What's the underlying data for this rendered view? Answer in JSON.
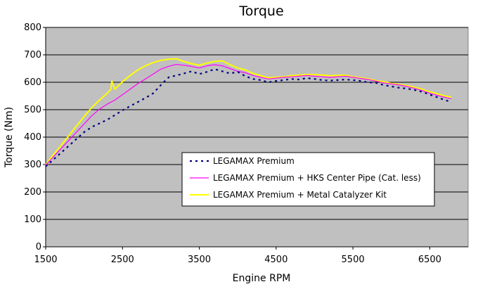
{
  "chart_data": {
    "type": "line",
    "title": "Torque",
    "xlabel": "Engine RPM",
    "ylabel": "Torque (Nm)",
    "xlim": [
      1500,
      7000
    ],
    "ylim": [
      0,
      800
    ],
    "xticks": [
      1500,
      2500,
      3500,
      4500,
      5500,
      6500
    ],
    "yticks": [
      0,
      100,
      200,
      300,
      400,
      500,
      600,
      700,
      800
    ],
    "grid": "horizontal",
    "legend_position": "center-right",
    "background_color": "#c0c0c0",
    "series": [
      {
        "name": "LEGAMAX Premium",
        "color": "#000080",
        "style": "dotted",
        "x": [
          1500,
          1600,
          1700,
          1800,
          1900,
          2000,
          2100,
          2200,
          2300,
          2400,
          2500,
          2600,
          2700,
          2800,
          2900,
          3000,
          3100,
          3200,
          3300,
          3400,
          3500,
          3600,
          3700,
          3800,
          3900,
          4000,
          4100,
          4200,
          4300,
          4400,
          4500,
          4600,
          4700,
          4800,
          4900,
          5000,
          5100,
          5200,
          5300,
          5400,
          5500,
          5600,
          5700,
          5800,
          5900,
          6000,
          6100,
          6200,
          6300,
          6400,
          6500,
          6600,
          6700,
          6780
        ],
        "y": [
          293,
          318,
          343,
          368,
          393,
          418,
          437,
          450,
          463,
          480,
          498,
          513,
          528,
          543,
          560,
          590,
          618,
          625,
          632,
          640,
          630,
          638,
          648,
          640,
          632,
          638,
          622,
          612,
          608,
          600,
          605,
          608,
          612,
          610,
          615,
          612,
          608,
          606,
          608,
          610,
          608,
          605,
          600,
          598,
          590,
          585,
          580,
          577,
          572,
          565,
          555,
          545,
          535,
          528
        ]
      },
      {
        "name": "LEGAMAX Premium + HKS Center Pipe (Cat. less)",
        "color": "#ff00ff",
        "style": "solid",
        "x": [
          1500,
          1600,
          1700,
          1800,
          1900,
          2000,
          2100,
          2200,
          2300,
          2400,
          2500,
          2600,
          2700,
          2800,
          2900,
          3000,
          3100,
          3200,
          3300,
          3400,
          3500,
          3600,
          3700,
          3800,
          3900,
          4000,
          4100,
          4200,
          4300,
          4400,
          4500,
          4600,
          4700,
          4800,
          4900,
          5000,
          5100,
          5200,
          5300,
          5400,
          5500,
          5600,
          5700,
          5800,
          5900,
          6000,
          6100,
          6200,
          6300,
          6400,
          6500,
          6600,
          6700,
          6780
        ],
        "y": [
          298,
          328,
          358,
          388,
          418,
          448,
          478,
          502,
          520,
          535,
          555,
          575,
          595,
          612,
          630,
          648,
          658,
          665,
          662,
          658,
          652,
          660,
          664,
          660,
          650,
          640,
          635,
          625,
          618,
          612,
          615,
          618,
          620,
          622,
          625,
          622,
          620,
          618,
          620,
          622,
          618,
          614,
          610,
          604,
          598,
          594,
          590,
          585,
          578,
          570,
          560,
          552,
          545,
          540
        ]
      },
      {
        "name": "LEGAMAX Premium + Metal Catalyzer Kit",
        "color": "#ffff00",
        "style": "solid",
        "x": [
          1500,
          1600,
          1700,
          1800,
          1900,
          2000,
          2100,
          2200,
          2300,
          2350,
          2360,
          2400,
          2500,
          2600,
          2700,
          2800,
          2900,
          3000,
          3100,
          3200,
          3300,
          3400,
          3500,
          3600,
          3700,
          3800,
          3900,
          4000,
          4100,
          4200,
          4300,
          4400,
          4500,
          4600,
          4700,
          4800,
          4900,
          5000,
          5100,
          5200,
          5300,
          5400,
          5500,
          5600,
          5700,
          5800,
          5900,
          6000,
          6100,
          6200,
          6300,
          6400,
          6500,
          6600,
          6700,
          6780
        ],
        "y": [
          300,
          335,
          370,
          405,
          440,
          475,
          508,
          535,
          560,
          575,
          605,
          575,
          602,
          625,
          645,
          660,
          672,
          680,
          684,
          686,
          676,
          668,
          662,
          670,
          676,
          678,
          664,
          652,
          645,
          632,
          624,
          616,
          618,
          620,
          624,
          626,
          628,
          628,
          626,
          624,
          625,
          626,
          620,
          616,
          612,
          606,
          602,
          596,
          592,
          588,
          582,
          574,
          565,
          558,
          550,
          546
        ]
      }
    ]
  }
}
